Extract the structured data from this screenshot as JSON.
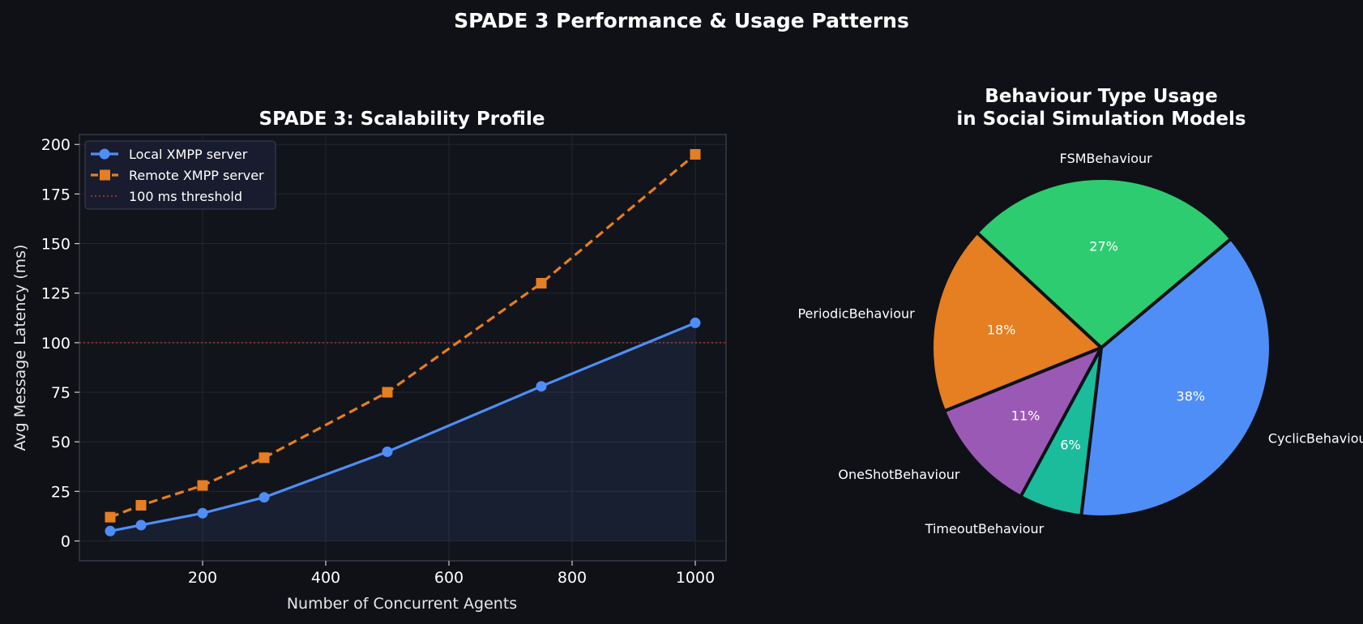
{
  "figure": {
    "suptitle": "SPADE 3 Performance & Usage Patterns",
    "background": "#0f1117"
  },
  "chart_data": [
    {
      "type": "line",
      "title": "SPADE 3: Scalability Profile",
      "xlabel": "Number of Concurrent Agents",
      "ylabel": "Avg Message Latency (ms)",
      "xlim": [
        0,
        1050
      ],
      "ylim": [
        -10,
        205
      ],
      "xticks": [
        200,
        400,
        600,
        800,
        1000
      ],
      "yticks": [
        0,
        25,
        50,
        75,
        100,
        125,
        150,
        175,
        200
      ],
      "grid": true,
      "legend_position": "top-left",
      "x": [
        50,
        100,
        200,
        300,
        500,
        750,
        1000
      ],
      "series": [
        {
          "name": "Local XMPP server",
          "values": [
            5,
            8,
            14,
            22,
            45,
            78,
            110
          ],
          "color": "#4f8ef7",
          "marker": "circle",
          "linestyle": "solid",
          "fill": true
        },
        {
          "name": "Remote XMPP server",
          "values": [
            12,
            18,
            28,
            42,
            75,
            130,
            195
          ],
          "color": "#e67e22",
          "marker": "square",
          "linestyle": "dashed"
        }
      ],
      "threshold": {
        "name": "100 ms threshold",
        "value": 100,
        "color": "#c0392b",
        "linestyle": "dotted"
      }
    },
    {
      "type": "pie",
      "title_lines": [
        "Behaviour Type Usage",
        "in Social Simulation Models"
      ],
      "slices": [
        {
          "label": "CyclicBehaviour",
          "value": 38,
          "pct_label": "38%",
          "color": "#4f8ef7"
        },
        {
          "label": "FSMBehaviour",
          "value": 27,
          "pct_label": "27%",
          "color": "#2ecc71"
        },
        {
          "label": "PeriodicBehaviour",
          "value": 18,
          "pct_label": "18%",
          "color": "#e67e22"
        },
        {
          "label": "OneShotBehaviour",
          "value": 11,
          "pct_label": "11%",
          "color": "#9b59b6"
        },
        {
          "label": "TimeoutBehaviour",
          "value": 6,
          "pct_label": "6%",
          "color": "#1abc9c"
        }
      ]
    }
  ]
}
